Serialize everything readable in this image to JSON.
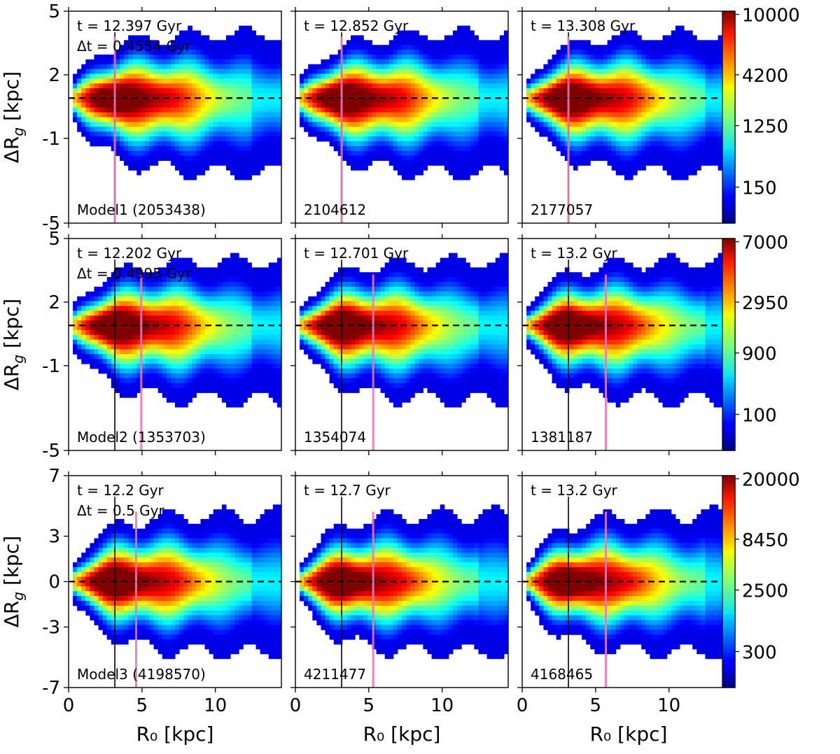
{
  "chart_data": {
    "type": "heatmap",
    "colormap": "jet",
    "xlabel": "R₀ [kpc]",
    "ylabel": "ΔR",
    "ylabel_sub": "g",
    "ylabel_unit": " [kpc]",
    "xlim": [
      0,
      14.5
    ],
    "xticks": [
      0,
      5,
      10
    ],
    "x_tick_labels": [
      "0",
      "5",
      "10"
    ],
    "rows": [
      {
        "model": "Model1",
        "ylim": [
          -5,
          5
        ],
        "yticks": [
          5,
          2,
          -1,
          -5
        ],
        "y_tick_labels": [
          "5",
          "2",
          "-1",
          "-5"
        ],
        "zero_line": 0.9,
        "colorbar": {
          "ticks": [
            "10000",
            "4200",
            "1250",
            "150"
          ]
        },
        "pink_line_x": [
          3.15,
          3.15,
          3.15
        ],
        "panels": [
          {
            "time": "t = 12.397 Gyr",
            "dt": "Δt = 0.4554 Gyr",
            "count": "Model1 (2053438)"
          },
          {
            "time": "t = 12.852 Gyr",
            "count": "2104612"
          },
          {
            "time": "t = 13.308 Gyr",
            "count": "2177057"
          }
        ]
      },
      {
        "model": "Model2",
        "ylim": [
          -5,
          5
        ],
        "yticks": [
          5,
          2,
          -1,
          -5
        ],
        "y_tick_labels": [
          "5",
          "2",
          "-1",
          "-5"
        ],
        "zero_line": 0.9,
        "colorbar": {
          "ticks": [
            "7000",
            "2950",
            "900",
            "100"
          ]
        },
        "pink_line_x": [
          4.95,
          5.3,
          5.7
        ],
        "panels": [
          {
            "time": "t = 12.202 Gyr",
            "dt": "Δt = 0.4995 Gyr",
            "count": "Model2 (1353703)"
          },
          {
            "time": "t = 12.701 Gyr",
            "count": "1354074"
          },
          {
            "time": "t = 13.2 Gyr",
            "count": "1381187"
          }
        ]
      },
      {
        "model": "Model3",
        "ylim": [
          -7,
          7
        ],
        "yticks": [
          7,
          3,
          0,
          -3,
          -7
        ],
        "y_tick_labels": [
          "7",
          "3",
          "0",
          "-3",
          "-7"
        ],
        "zero_line": 0,
        "colorbar": {
          "ticks": [
            "20000",
            "8450",
            "2500",
            "300"
          ]
        },
        "pink_line_x": [
          4.6,
          5.3,
          5.7
        ],
        "panels": [
          {
            "time": "t = 12.2 Gyr",
            "dt": "Δt = 0.5 Gyr",
            "count": "Model3 (4198570)"
          },
          {
            "time": "t = 12.7 Gyr",
            "count": "4211477"
          },
          {
            "time": "t = 13.2 Gyr",
            "count": "4168465"
          }
        ]
      }
    ],
    "black_line_x": 3.15
  }
}
